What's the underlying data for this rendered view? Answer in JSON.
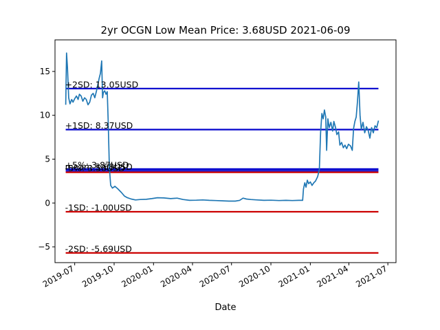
{
  "chart_data": {
    "type": "line",
    "title": "2yr OCGN Low Mean Price: 3.68USD 2021-06-09",
    "xlabel": "Date",
    "ylabel": "",
    "xlim": [
      "2019-05-16",
      "2021-07-20"
    ],
    "ylim": [
      -6.8,
      18.6
    ],
    "x_ticks": [
      {
        "date": "2019-07-01",
        "label": "2019-07"
      },
      {
        "date": "2019-10-01",
        "label": "2019-10"
      },
      {
        "date": "2020-01-01",
        "label": "2020-01"
      },
      {
        "date": "2020-04-01",
        "label": "2020-04"
      },
      {
        "date": "2020-07-01",
        "label": "2020-07"
      },
      {
        "date": "2020-10-01",
        "label": "2020-10"
      },
      {
        "date": "2021-01-01",
        "label": "2021-01"
      },
      {
        "date": "2021-04-01",
        "label": "2021-04"
      },
      {
        "date": "2021-07-01",
        "label": "2021-07"
      }
    ],
    "y_ticks": [
      {
        "value": -5,
        "label": "−5"
      },
      {
        "value": 0,
        "label": "0"
      },
      {
        "value": 5,
        "label": "5"
      },
      {
        "value": 10,
        "label": "10"
      },
      {
        "value": 15,
        "label": "15"
      }
    ],
    "grid": false,
    "reference_lines": [
      {
        "label": "+2SD: 13.05USD",
        "value": 13.05,
        "color": "#0000cc"
      },
      {
        "label": "+1SD: 8.37USD",
        "value": 8.37,
        "color": "#0000cc"
      },
      {
        "label": "+5%: 3.87USD",
        "value": 3.87,
        "color": "#0000cc"
      },
      {
        "label": "mean: 3.68USD",
        "value": 3.68,
        "color": "#0000cc"
      },
      {
        "label": "-5%: 3.50USD",
        "value": 3.5,
        "color": "#cc0000"
      },
      {
        "label": "-1SD: -1.00USD",
        "value": -1.0,
        "color": "#cc0000"
      },
      {
        "label": "-2SD: -5.69USD",
        "value": -5.69,
        "color": "#cc0000"
      }
    ],
    "line_start": "2019-06-10",
    "line_end": "2021-06-09",
    "series": [
      {
        "name": "",
        "color": "#1f77b4",
        "points": [
          [
            "2019-06-10",
            11.2
          ],
          [
            "2019-06-12",
            17.1
          ],
          [
            "2019-06-14",
            15.5
          ],
          [
            "2019-06-17",
            12.0
          ],
          [
            "2019-06-20",
            11.3
          ],
          [
            "2019-06-24",
            11.8
          ],
          [
            "2019-06-27",
            11.5
          ],
          [
            "2019-07-01",
            11.9
          ],
          [
            "2019-07-05",
            12.2
          ],
          [
            "2019-07-09",
            11.8
          ],
          [
            "2019-07-12",
            12.4
          ],
          [
            "2019-07-16",
            12.2
          ],
          [
            "2019-07-20",
            11.6
          ],
          [
            "2019-07-24",
            12.0
          ],
          [
            "2019-07-28",
            11.8
          ],
          [
            "2019-08-01",
            11.2
          ],
          [
            "2019-08-05",
            11.5
          ],
          [
            "2019-08-09",
            12.3
          ],
          [
            "2019-08-13",
            12.5
          ],
          [
            "2019-08-17",
            12.0
          ],
          [
            "2019-08-21",
            12.8
          ],
          [
            "2019-08-24",
            13.5
          ],
          [
            "2019-08-27",
            14.2
          ],
          [
            "2019-08-30",
            14.8
          ],
          [
            "2019-09-02",
            16.2
          ],
          [
            "2019-09-04",
            12.0
          ],
          [
            "2019-09-06",
            12.6
          ],
          [
            "2019-09-09",
            12.8
          ],
          [
            "2019-09-12",
            12.4
          ],
          [
            "2019-09-15",
            12.7
          ],
          [
            "2019-09-17",
            9.5
          ],
          [
            "2019-09-20",
            4.0
          ],
          [
            "2019-09-23",
            2.0
          ],
          [
            "2019-09-27",
            1.7
          ],
          [
            "2019-10-03",
            1.9
          ],
          [
            "2019-10-10",
            1.6
          ],
          [
            "2019-10-18",
            1.2
          ],
          [
            "2019-10-25",
            0.8
          ],
          [
            "2019-11-01",
            0.6
          ],
          [
            "2019-11-10",
            0.45
          ],
          [
            "2019-11-20",
            0.35
          ],
          [
            "2019-12-01",
            0.4
          ],
          [
            "2019-12-15",
            0.42
          ],
          [
            "2019-12-28",
            0.5
          ],
          [
            "2020-01-10",
            0.6
          ],
          [
            "2020-01-25",
            0.58
          ],
          [
            "2020-02-10",
            0.5
          ],
          [
            "2020-02-25",
            0.55
          ],
          [
            "2020-03-10",
            0.4
          ],
          [
            "2020-03-25",
            0.3
          ],
          [
            "2020-04-10",
            0.32
          ],
          [
            "2020-04-25",
            0.35
          ],
          [
            "2020-05-10",
            0.3
          ],
          [
            "2020-05-25",
            0.28
          ],
          [
            "2020-06-10",
            0.25
          ],
          [
            "2020-06-25",
            0.22
          ],
          [
            "2020-07-10",
            0.22
          ],
          [
            "2020-07-20",
            0.3
          ],
          [
            "2020-07-28",
            0.55
          ],
          [
            "2020-08-05",
            0.45
          ],
          [
            "2020-08-15",
            0.4
          ],
          [
            "2020-08-30",
            0.35
          ],
          [
            "2020-09-15",
            0.3
          ],
          [
            "2020-10-01",
            0.32
          ],
          [
            "2020-10-20",
            0.28
          ],
          [
            "2020-11-05",
            0.3
          ],
          [
            "2020-11-20",
            0.28
          ],
          [
            "2020-12-05",
            0.3
          ],
          [
            "2020-12-14",
            0.3
          ],
          [
            "2020-12-16",
            1.6
          ],
          [
            "2020-12-19",
            2.3
          ],
          [
            "2020-12-22",
            1.8
          ],
          [
            "2020-12-25",
            2.6
          ],
          [
            "2020-12-28",
            2.2
          ],
          [
            "2021-01-01",
            2.4
          ],
          [
            "2021-01-05",
            2.0
          ],
          [
            "2021-01-09",
            2.3
          ],
          [
            "2021-01-13",
            2.5
          ],
          [
            "2021-01-18",
            3.0
          ],
          [
            "2021-01-22",
            3.8
          ],
          [
            "2021-01-25",
            8.0
          ],
          [
            "2021-01-28",
            10.2
          ],
          [
            "2021-01-31",
            9.6
          ],
          [
            "2021-02-03",
            10.6
          ],
          [
            "2021-02-06",
            9.8
          ],
          [
            "2021-02-08",
            6.0
          ],
          [
            "2021-02-11",
            9.6
          ],
          [
            "2021-02-14",
            8.6
          ],
          [
            "2021-02-18",
            9.2
          ],
          [
            "2021-02-22",
            8.2
          ],
          [
            "2021-02-25",
            9.3
          ],
          [
            "2021-03-01",
            8.6
          ],
          [
            "2021-03-04",
            7.8
          ],
          [
            "2021-03-08",
            8.1
          ],
          [
            "2021-03-11",
            6.6
          ],
          [
            "2021-03-15",
            6.9
          ],
          [
            "2021-03-19",
            6.3
          ],
          [
            "2021-03-23",
            6.6
          ],
          [
            "2021-03-27",
            6.2
          ],
          [
            "2021-03-31",
            6.7
          ],
          [
            "2021-04-05",
            6.5
          ],
          [
            "2021-04-09",
            6.0
          ],
          [
            "2021-04-12",
            8.5
          ],
          [
            "2021-04-15",
            9.3
          ],
          [
            "2021-04-18",
            9.8
          ],
          [
            "2021-04-21",
            11.5
          ],
          [
            "2021-04-24",
            13.8
          ],
          [
            "2021-04-27",
            10.0
          ],
          [
            "2021-04-30",
            8.4
          ],
          [
            "2021-05-04",
            9.2
          ],
          [
            "2021-05-08",
            8.0
          ],
          [
            "2021-05-12",
            8.7
          ],
          [
            "2021-05-16",
            8.3
          ],
          [
            "2021-05-20",
            7.4
          ],
          [
            "2021-05-24",
            8.6
          ],
          [
            "2021-05-28",
            8.0
          ],
          [
            "2021-06-01",
            8.8
          ],
          [
            "2021-06-05",
            8.6
          ],
          [
            "2021-06-09",
            9.4
          ]
        ]
      }
    ]
  }
}
